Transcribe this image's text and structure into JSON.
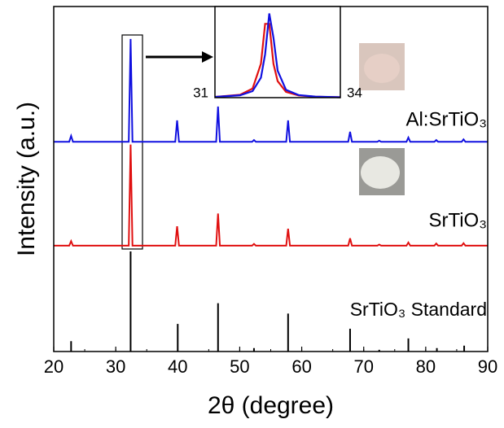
{
  "chart_data": [
    {
      "type": "line",
      "x_label": "2θ (degree)",
      "y_label": "Intensity (a.u.)",
      "xlim": [
        20,
        90
      ],
      "xticks": [
        20,
        30,
        40,
        50,
        60,
        70,
        80,
        90
      ],
      "ylim": [
        0,
        100
      ],
      "x": [
        20,
        22.5,
        22.8,
        23.1,
        32.1,
        32.4,
        32.7,
        39.6,
        39.9,
        40.2,
        46.2,
        46.5,
        46.8,
        52,
        52.3,
        52.6,
        57.5,
        57.8,
        58.1,
        67.5,
        67.8,
        68.1,
        72.2,
        72.5,
        72.8,
        76.9,
        77.2,
        77.5,
        81.4,
        81.7,
        82,
        85.8,
        86.1,
        86.4,
        90
      ],
      "series": [
        {
          "name": "Al:SrTiO₃",
          "color": "#1010e0",
          "values": [
            60.8,
            60.8,
            62.5,
            60.8,
            60.8,
            90.6,
            60.8,
            60.8,
            67,
            60.8,
            60.8,
            71,
            60.8,
            60.8,
            61.3,
            60.8,
            60.8,
            67,
            60.8,
            60.8,
            63.7,
            60.8,
            60.8,
            61.1,
            60.8,
            60.8,
            62,
            60.8,
            60.8,
            61.3,
            60.8,
            60.8,
            61.5,
            60.8,
            60.8
          ]
        },
        {
          "name": "SrTiO₃",
          "color": "#e01010",
          "values": [
            30.7,
            30.7,
            32,
            30.7,
            30.7,
            60,
            30.7,
            30.7,
            36.3,
            30.7,
            30.7,
            40,
            30.7,
            30.7,
            31.2,
            30.7,
            30.7,
            35.6,
            30.7,
            30.7,
            32.8,
            30.7,
            30.7,
            31,
            30.7,
            30.7,
            31.6,
            30.7,
            30.7,
            31.3,
            30.7,
            30.7,
            31.4,
            30.7,
            30.7
          ]
        },
        {
          "name": "SrTiO₃ Standard",
          "color": "#000000",
          "style": "stick",
          "x": [
            22.8,
            32.4,
            40,
            46.5,
            52.3,
            57.8,
            67.8,
            72.5,
            77.2,
            81.8,
            86.2
          ],
          "values": [
            3,
            29,
            8,
            14,
            1,
            11,
            6.6,
            0.5,
            3.8,
            1,
            1.7
          ]
        }
      ]
    },
    {
      "type": "line",
      "xlim": [
        31,
        34
      ],
      "xticks": [
        31,
        34
      ],
      "ylim": [
        0,
        105
      ],
      "x": [
        31,
        31.6,
        31.9,
        32.1,
        32.2,
        32.3,
        32.4,
        32.5,
        32.7,
        33,
        33.4,
        34
      ],
      "series": [
        {
          "color": "#e01010",
          "values": [
            0.9,
            3.3,
            10.5,
            39,
            85,
            85,
            39,
            19,
            6.6,
            2.5,
            1.1,
            0.5
          ]
        },
        {
          "color": "#1010e0",
          "values": [
            0.8,
            2.7,
            7.5,
            23,
            50,
            97,
            69,
            31,
            9,
            3,
            1.2,
            0.5
          ]
        }
      ]
    }
  ]
}
